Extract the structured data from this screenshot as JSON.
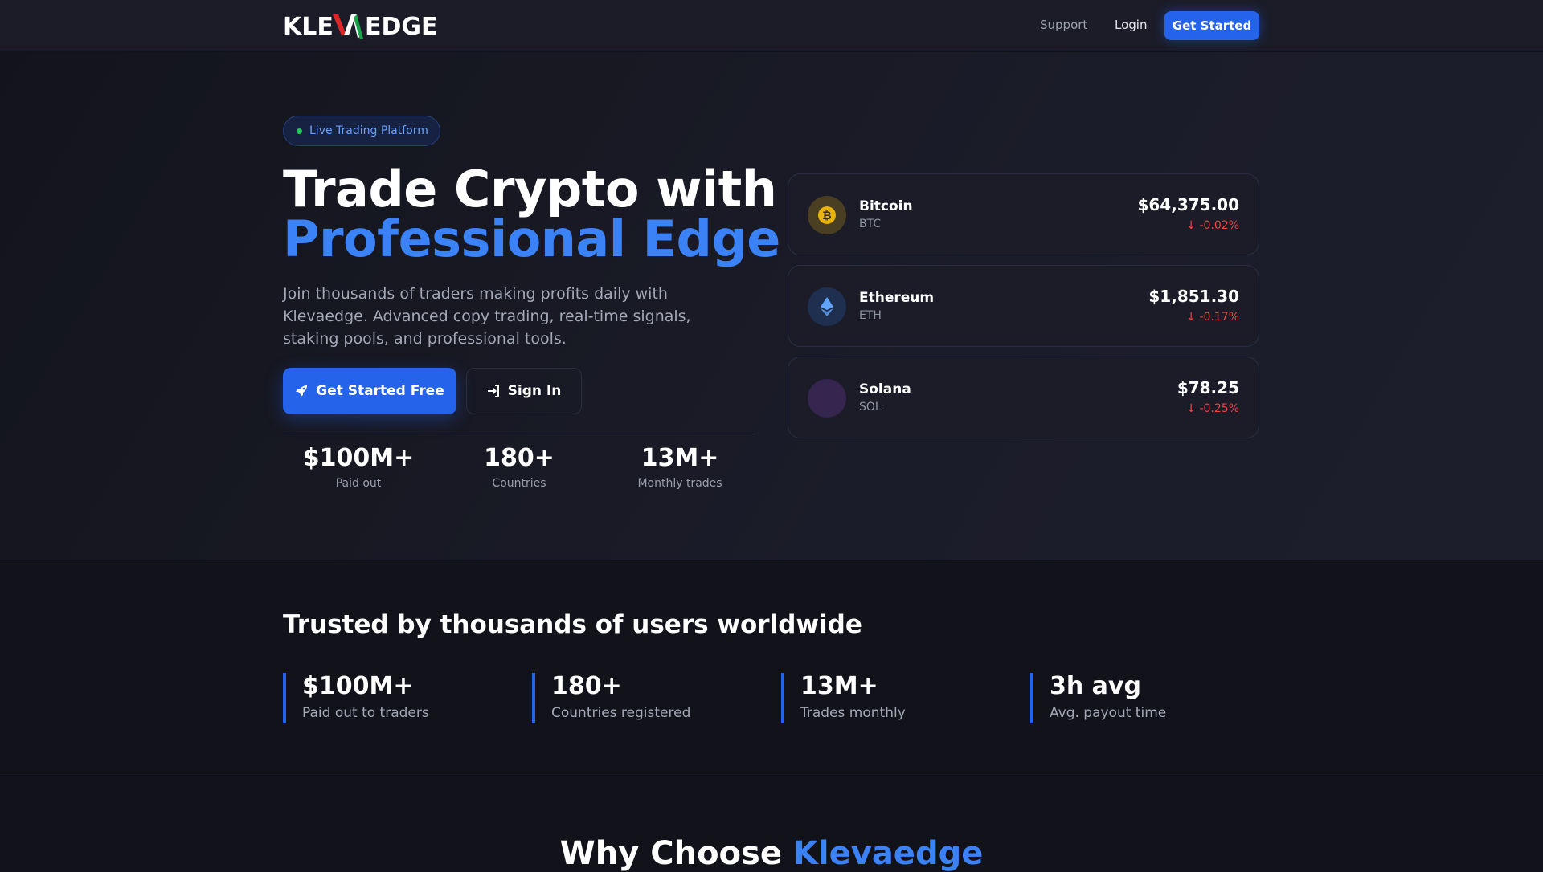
{
  "nav": {
    "logo_text": "KLEVAEDGE",
    "support": "Support",
    "login": "Login",
    "get_started": "Get Started"
  },
  "hero": {
    "badge": "Live Trading Platform",
    "title_line1": "Trade Crypto with",
    "title_line2": "Professional Edge",
    "description": "Join thousands of traders making profits daily with Klevaedge. Advanced copy trading, real-time signals, staking pools, and professional tools.",
    "primary_button": "Get Started Free",
    "secondary_button": "Sign In",
    "stats": [
      {
        "value": "$100M+",
        "label": "Paid out"
      },
      {
        "value": "180+",
        "label": "Countries"
      },
      {
        "value": "13M+",
        "label": "Monthly trades"
      }
    ]
  },
  "tickers": [
    {
      "name": "Bitcoin",
      "symbol": "BTC",
      "price": "$64,375.00",
      "change": "-0.02%",
      "icon": "bitcoin-icon",
      "color": "#eab308"
    },
    {
      "name": "Ethereum",
      "symbol": "ETH",
      "price": "$1,851.30",
      "change": "-0.17%",
      "icon": "ethereum-icon",
      "color": "#60a5fa"
    },
    {
      "name": "Solana",
      "symbol": "SOL",
      "price": "$78.25",
      "change": "-0.25%",
      "icon": "solana-icon",
      "color": "#a855f7"
    }
  ],
  "trust": {
    "heading": "Trusted by thousands of users worldwide",
    "stats": [
      {
        "value": "$100M+",
        "label": "Paid out to traders"
      },
      {
        "value": "180+",
        "label": "Countries registered"
      },
      {
        "value": "13M+",
        "label": "Trades monthly"
      },
      {
        "value": "3h avg",
        "label": "Avg. payout time"
      }
    ]
  },
  "why": {
    "prefix": "Why Choose ",
    "brand": "Klevaedge"
  },
  "colors": {
    "accent": "#2563eb",
    "negative": "#ef4444",
    "live": "#22c55e"
  }
}
